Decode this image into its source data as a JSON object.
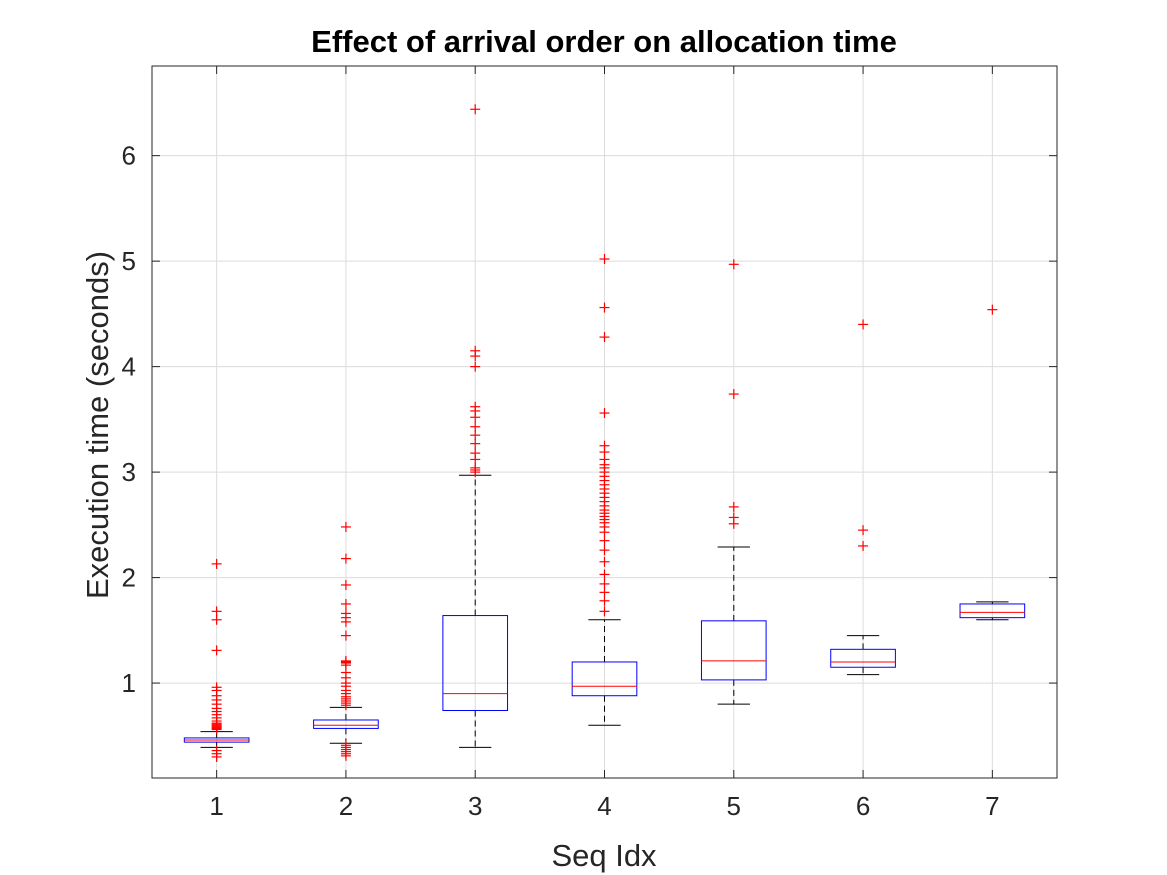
{
  "chart_data": {
    "type": "box",
    "title": "Effect of arrival order on allocation time",
    "xlabel": "Seq Idx",
    "ylabel": "Execution time (seconds)",
    "categories": [
      "1",
      "2",
      "3",
      "4",
      "5",
      "6",
      "7"
    ],
    "xlim": [
      0.5,
      7.5
    ],
    "ylim": [
      0.1,
      6.85
    ],
    "yticks": [
      1,
      2,
      3,
      4,
      5,
      6
    ],
    "ytick_labels": [
      "1",
      "2",
      "3",
      "4",
      "5",
      "6"
    ],
    "grid": true,
    "colors": {
      "box": "#0000ff",
      "median": "#ff0000",
      "whisker": "#000000",
      "outlier": "#ff0000",
      "grid": "#dcdcdc",
      "axis": "#262626"
    },
    "boxes": [
      {
        "category": "1",
        "whisker_low": 0.39,
        "q1": 0.44,
        "median": 0.46,
        "q3": 0.48,
        "whisker_high": 0.54,
        "outliers": [
          0.3,
          0.33,
          0.36,
          0.56,
          0.57,
          0.58,
          0.59,
          0.6,
          0.61,
          0.62,
          0.64,
          0.67,
          0.7,
          0.73,
          0.76,
          0.8,
          0.84,
          0.88,
          0.93,
          0.96,
          1.31,
          1.6,
          1.68,
          2.13
        ]
      },
      {
        "category": "2",
        "whisker_low": 0.43,
        "q1": 0.57,
        "median": 0.6,
        "q3": 0.65,
        "whisker_high": 0.77,
        "outliers": [
          0.31,
          0.33,
          0.35,
          0.37,
          0.39,
          0.41,
          0.79,
          0.81,
          0.83,
          0.85,
          0.87,
          0.9,
          0.93,
          0.97,
          1.0,
          1.05,
          1.1,
          1.17,
          1.19,
          1.2,
          1.21,
          1.45,
          1.58,
          1.62,
          1.66,
          1.75,
          1.93,
          2.18,
          2.48
        ]
      },
      {
        "category": "3",
        "whisker_low": 0.39,
        "q1": 0.74,
        "median": 0.9,
        "q3": 1.64,
        "whisker_high": 2.97,
        "outliers": [
          3.0,
          3.02,
          3.04,
          3.12,
          3.18,
          3.27,
          3.35,
          3.43,
          3.52,
          3.58,
          3.62,
          4.0,
          4.1,
          4.15,
          6.44
        ]
      },
      {
        "category": "4",
        "whisker_low": 0.6,
        "q1": 0.88,
        "median": 0.97,
        "q3": 1.2,
        "whisker_high": 1.6,
        "outliers": [
          1.68,
          1.78,
          1.86,
          1.94,
          2.03,
          2.15,
          2.26,
          2.35,
          2.43,
          2.48,
          2.52,
          2.55,
          2.58,
          2.61,
          2.64,
          2.68,
          2.72,
          2.76,
          2.8,
          2.84,
          2.88,
          2.92,
          2.96,
          3.0,
          3.04,
          3.07,
          3.12,
          3.19,
          3.25,
          3.56,
          4.28,
          4.56,
          5.02
        ]
      },
      {
        "category": "5",
        "whisker_low": 0.8,
        "q1": 1.03,
        "median": 1.21,
        "q3": 1.59,
        "whisker_high": 2.29,
        "outliers": [
          2.51,
          2.57,
          2.67,
          3.74,
          4.97
        ]
      },
      {
        "category": "6",
        "whisker_low": 1.08,
        "q1": 1.15,
        "median": 1.2,
        "q3": 1.32,
        "whisker_high": 1.45,
        "outliers": [
          2.3,
          2.45,
          4.4
        ]
      },
      {
        "category": "7",
        "whisker_low": 1.6,
        "q1": 1.62,
        "median": 1.67,
        "q3": 1.75,
        "whisker_high": 1.77,
        "outliers": [
          4.54
        ]
      }
    ]
  }
}
